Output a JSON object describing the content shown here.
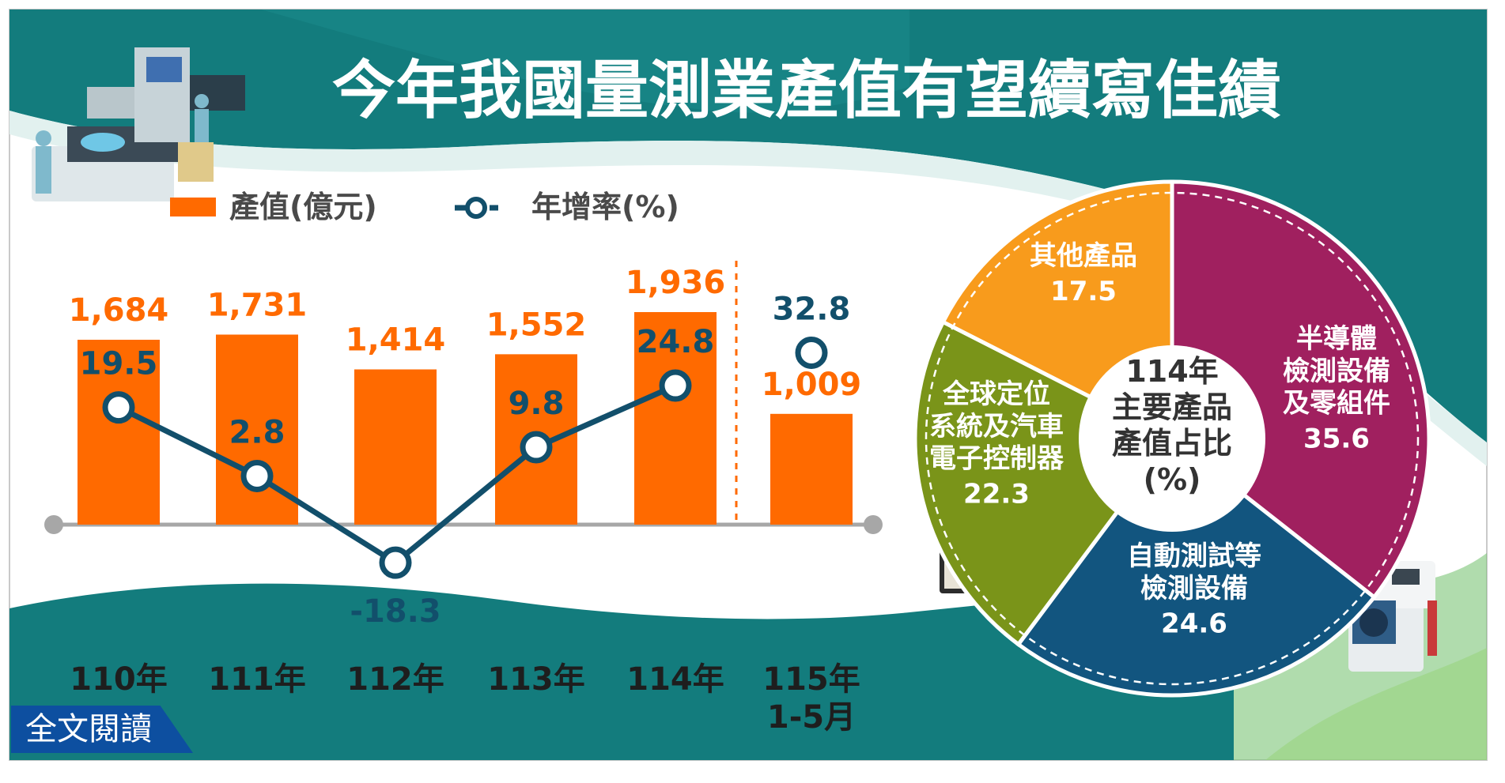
{
  "title": "今年我國量測業產值有望續寫佳績",
  "read_more_label": "全文閱讀",
  "colors": {
    "teal": "#137c7d",
    "bar": "#ff6a00",
    "line": "#124f6b",
    "pie_other": "#f89b1c",
    "pie_semi": "#a0205f",
    "pie_auto": "#12557f",
    "pie_gps": "#7a9419"
  },
  "chart_data": [
    {
      "type": "bar",
      "legend": [
        {
          "name": "產值(億元)",
          "marker": "bar"
        },
        {
          "name": "年增率(%)",
          "marker": "line-circle"
        }
      ],
      "categories": [
        "110年",
        "111年",
        "112年",
        "113年",
        "114年",
        "115年\n1-5月"
      ],
      "value_labels": [
        "1,684",
        "1,731",
        "1,414",
        "1,552",
        "1,936",
        "1,009"
      ],
      "series": [
        {
          "name": "產值(億元)",
          "type": "bar",
          "values": [
            1684,
            1731,
            1414,
            1552,
            1936,
            1009
          ]
        },
        {
          "name": "年增率(%)",
          "type": "line",
          "values": [
            19.5,
            2.8,
            -18.3,
            9.8,
            24.8,
            32.8
          ],
          "value_labels": [
            "19.5",
            "2.8",
            "-18.3",
            "9.8",
            "24.8",
            "32.8"
          ],
          "connected": [
            true,
            true,
            true,
            true,
            true,
            false
          ]
        }
      ]
    },
    {
      "type": "pie",
      "center_label": "114年\n主要產品\n產值占比\n(%)",
      "slices": [
        {
          "label": "半導體\n檢測設備\n及零組件",
          "value": 35.6,
          "value_label": "35.6"
        },
        {
          "label": "自動測試等\n檢測設備",
          "value": 24.6,
          "value_label": "24.6"
        },
        {
          "label": "全球定位\n系統及汽車\n電子控制器",
          "value": 22.3,
          "value_label": "22.3"
        },
        {
          "label": "其他產品",
          "value": 17.5,
          "value_label": "17.5"
        }
      ]
    }
  ]
}
